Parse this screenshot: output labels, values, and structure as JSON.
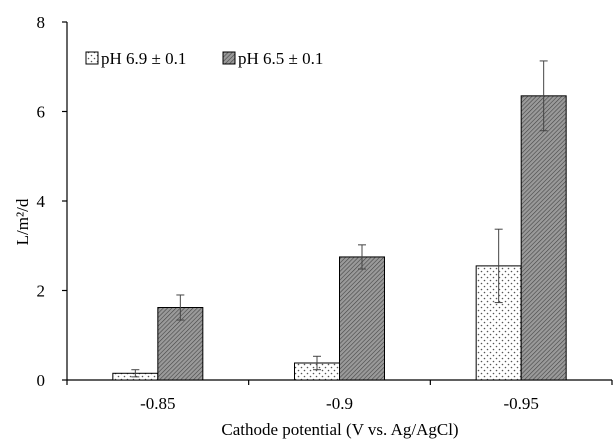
{
  "chart_data": {
    "type": "bar",
    "xlabel": "Cathode potential (V vs. Ag/AgCl)",
    "ylabel": "L/m²/d",
    "ylim": [
      0,
      8
    ],
    "yticks": [
      0,
      2,
      4,
      6,
      8
    ],
    "categories": [
      "-0.85",
      "-0.9",
      "-0.95"
    ],
    "series": [
      {
        "name": "pH 6.9 ± 0.1",
        "fill": "dotted",
        "values": [
          0.15,
          0.38,
          2.55
        ],
        "errors": [
          0.08,
          0.15,
          0.82
        ]
      },
      {
        "name": "pH 6.5 ± 0.1",
        "fill": "hatched",
        "values": [
          1.62,
          2.75,
          6.35
        ],
        "errors": [
          0.28,
          0.27,
          0.78
        ]
      }
    ],
    "legend_position": "top-left",
    "grid": false
  }
}
